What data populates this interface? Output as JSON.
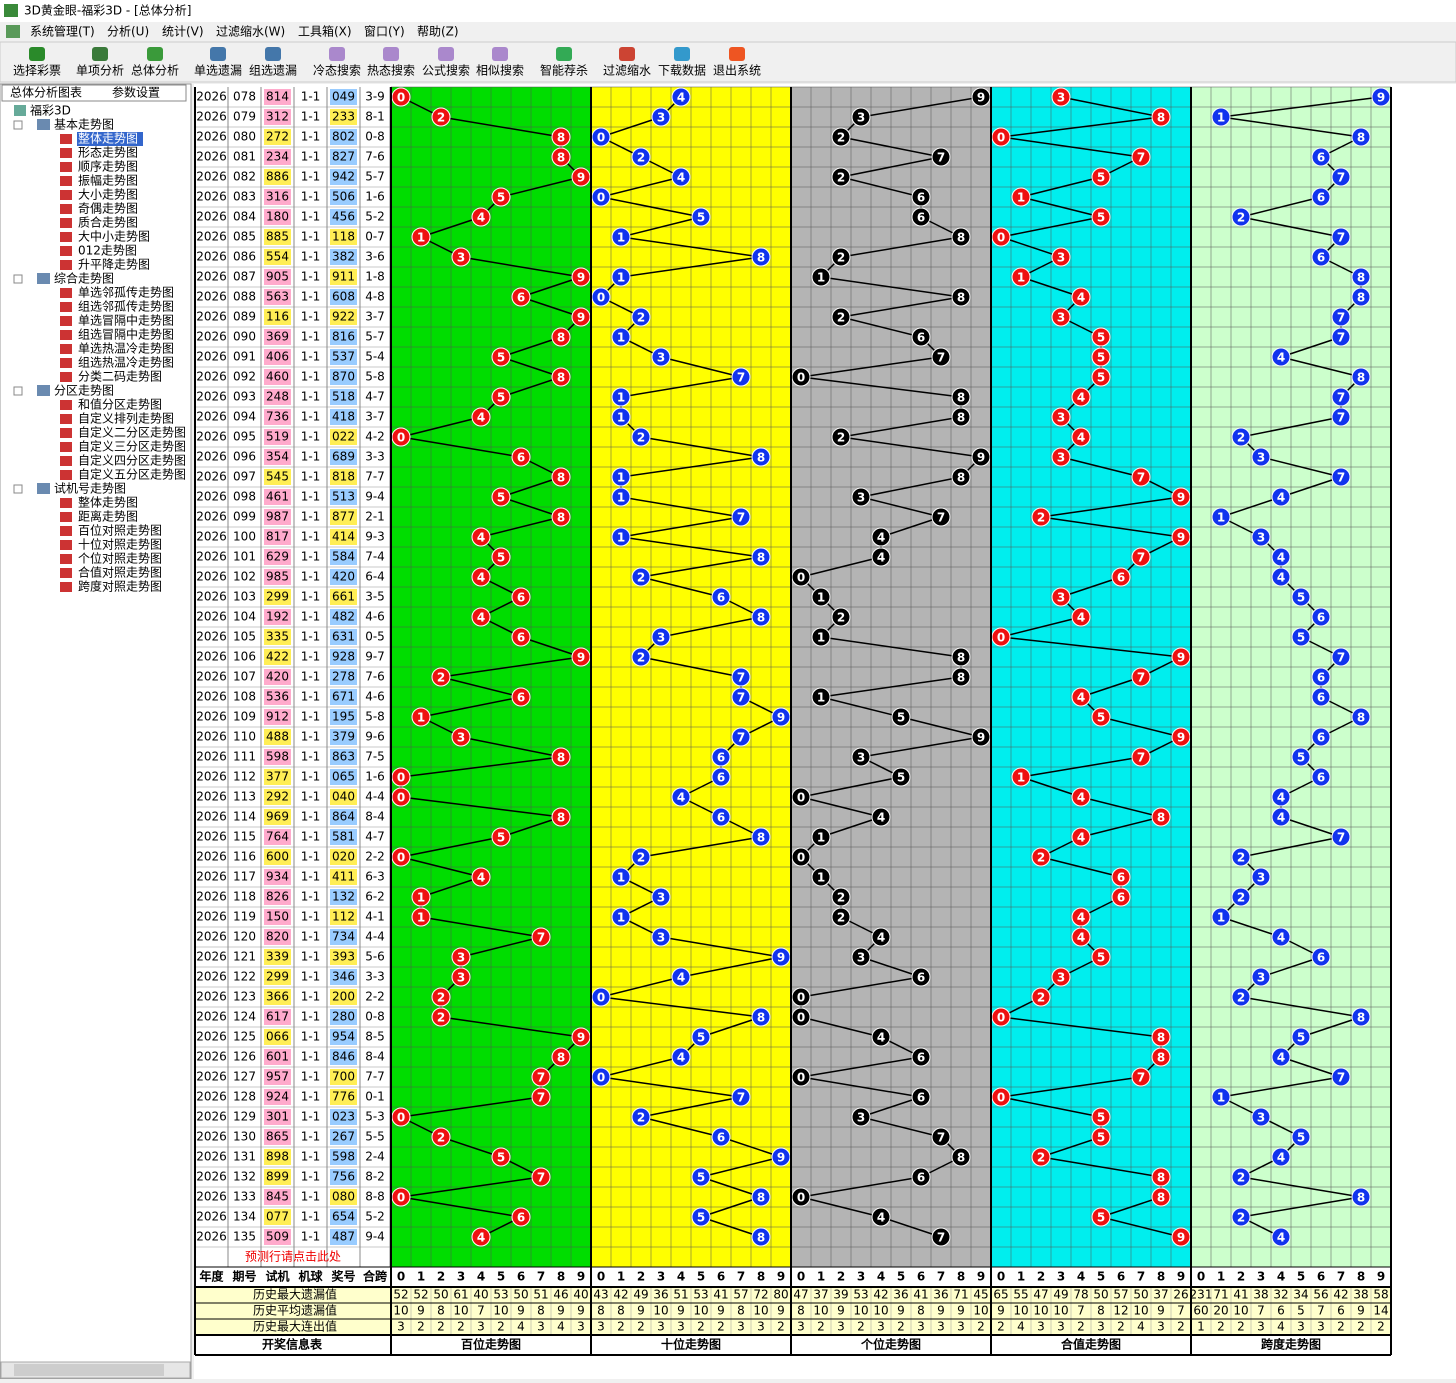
{
  "window": {
    "title": "3D黄金眼-福彩3D - [总体分析]"
  },
  "menu": [
    "系统管理(T)",
    "分析(U)",
    "统计(V)",
    "过滤缩水(W)",
    "工具箱(X)",
    "窗口(Y)",
    "帮助(Z)"
  ],
  "toolbar": [
    "选择彩票",
    "单项分析",
    "总体分析",
    "单选遗漏",
    "组选遗漏",
    "冷态搜索",
    "热态搜索",
    "公式搜索",
    "相似搜索",
    "智能荐杀",
    "过滤缩水",
    "下载数据",
    "退出系统"
  ],
  "sidebar": {
    "dropdown": "总体分析图表",
    "settings": "参数设置",
    "root": "福彩3D",
    "groups": [
      {
        "label": "基本走势图",
        "items": [
          "整体走势图",
          "形态走势图",
          "顺序走势图",
          "振幅走势图",
          "大小走势图",
          "奇偶走势图",
          "质合走势图",
          "大中小走势图",
          "012走势图",
          "升平降走势图"
        ]
      },
      {
        "label": "综合走势图",
        "items": [
          "单选邻孤传走势图",
          "组选邻孤传走势图",
          "单选冒隔中走势图",
          "组选冒隔中走势图",
          "单选热温冷走势图",
          "组选热温冷走势图",
          "分类二码走势图"
        ]
      },
      {
        "label": "分区走势图",
        "items": [
          "和值分区走势图",
          "自定义排列走势图",
          "自定义二分区走势图",
          "自定义三分区走势图",
          "自定义四分区走势图",
          "自定义五分区走势图"
        ]
      },
      {
        "label": "试机号走势图",
        "items": [
          "整体走势图",
          "距离走势图",
          "百位对照走势图",
          "十位对照走势图",
          "个位对照走势图",
          "合值对照走势图",
          "跨度对照走势图"
        ]
      }
    ]
  },
  "table": {
    "columns": [
      "年度",
      "期号",
      "试机",
      "机球",
      "奖号",
      "合跨"
    ],
    "colors": {
      "test": "#ffaacc",
      "draw": "#99ccff",
      "pair": "#ffee55"
    },
    "rows": [
      [
        "2026",
        "078",
        "814",
        "1-1",
        "049",
        "3-9"
      ],
      [
        "2026",
        "079",
        "312",
        "1-1",
        "233",
        "8-1"
      ],
      [
        "2026",
        "080",
        "272",
        "1-1",
        "802",
        "0-8"
      ],
      [
        "2026",
        "081",
        "234",
        "1-1",
        "827",
        "7-6"
      ],
      [
        "2026",
        "082",
        "886",
        "1-1",
        "942",
        "5-7"
      ],
      [
        "2026",
        "083",
        "316",
        "1-1",
        "506",
        "1-6"
      ],
      [
        "2026",
        "084",
        "180",
        "1-1",
        "456",
        "5-2"
      ],
      [
        "2026",
        "085",
        "885",
        "1-1",
        "118",
        "0-7"
      ],
      [
        "2026",
        "086",
        "554",
        "1-1",
        "382",
        "3-6"
      ],
      [
        "2026",
        "087",
        "905",
        "1-1",
        "911",
        "1-8"
      ],
      [
        "2026",
        "088",
        "563",
        "1-1",
        "608",
        "4-8"
      ],
      [
        "2026",
        "089",
        "116",
        "1-1",
        "922",
        "3-7"
      ],
      [
        "2026",
        "090",
        "369",
        "1-1",
        "816",
        "5-7"
      ],
      [
        "2026",
        "091",
        "406",
        "1-1",
        "537",
        "5-4"
      ],
      [
        "2026",
        "092",
        "460",
        "1-1",
        "870",
        "5-8"
      ],
      [
        "2026",
        "093",
        "248",
        "1-1",
        "518",
        "4-7"
      ],
      [
        "2026",
        "094",
        "736",
        "1-1",
        "418",
        "3-7"
      ],
      [
        "2026",
        "095",
        "519",
        "1-1",
        "022",
        "4-2"
      ],
      [
        "2026",
        "096",
        "354",
        "1-1",
        "689",
        "3-3"
      ],
      [
        "2026",
        "097",
        "545",
        "1-1",
        "818",
        "7-7"
      ],
      [
        "2026",
        "098",
        "461",
        "1-1",
        "513",
        "9-4"
      ],
      [
        "2026",
        "099",
        "987",
        "1-1",
        "877",
        "2-1"
      ],
      [
        "2026",
        "100",
        "817",
        "1-1",
        "414",
        "9-3"
      ],
      [
        "2026",
        "101",
        "629",
        "1-1",
        "584",
        "7-4"
      ],
      [
        "2026",
        "102",
        "985",
        "1-1",
        "420",
        "6-4"
      ],
      [
        "2026",
        "103",
        "299",
        "1-1",
        "661",
        "3-5"
      ],
      [
        "2026",
        "104",
        "192",
        "1-1",
        "482",
        "4-6"
      ],
      [
        "2026",
        "105",
        "335",
        "1-1",
        "631",
        "0-5"
      ],
      [
        "2026",
        "106",
        "422",
        "1-1",
        "928",
        "9-7"
      ],
      [
        "2026",
        "107",
        "420",
        "1-1",
        "278",
        "7-6"
      ],
      [
        "2026",
        "108",
        "536",
        "1-1",
        "671",
        "4-6"
      ],
      [
        "2026",
        "109",
        "912",
        "1-1",
        "195",
        "5-8"
      ],
      [
        "2026",
        "110",
        "488",
        "1-1",
        "379",
        "9-6"
      ],
      [
        "2026",
        "111",
        "598",
        "1-1",
        "863",
        "7-5"
      ],
      [
        "2026",
        "112",
        "377",
        "1-1",
        "065",
        "1-6"
      ],
      [
        "2026",
        "113",
        "292",
        "1-1",
        "040",
        "4-4"
      ],
      [
        "2026",
        "114",
        "969",
        "1-1",
        "864",
        "8-4"
      ],
      [
        "2026",
        "115",
        "764",
        "1-1",
        "581",
        "4-7"
      ],
      [
        "2026",
        "116",
        "600",
        "1-1",
        "020",
        "2-2"
      ],
      [
        "2026",
        "117",
        "934",
        "1-1",
        "411",
        "6-3"
      ],
      [
        "2026",
        "118",
        "826",
        "1-1",
        "132",
        "6-2"
      ],
      [
        "2026",
        "119",
        "150",
        "1-1",
        "112",
        "4-1"
      ],
      [
        "2026",
        "120",
        "820",
        "1-1",
        "734",
        "4-4"
      ],
      [
        "2026",
        "121",
        "339",
        "1-1",
        "393",
        "5-6"
      ],
      [
        "2026",
        "122",
        "299",
        "1-1",
        "346",
        "3-3"
      ],
      [
        "2026",
        "123",
        "366",
        "1-1",
        "200",
        "2-2"
      ],
      [
        "2026",
        "124",
        "617",
        "1-1",
        "280",
        "0-8"
      ],
      [
        "2026",
        "125",
        "066",
        "1-1",
        "954",
        "8-5"
      ],
      [
        "2026",
        "126",
        "601",
        "1-1",
        "846",
        "8-4"
      ],
      [
        "2026",
        "127",
        "957",
        "1-1",
        "700",
        "7-7"
      ],
      [
        "2026",
        "128",
        "924",
        "1-1",
        "776",
        "0-1"
      ],
      [
        "2026",
        "129",
        "301",
        "1-1",
        "023",
        "5-3"
      ],
      [
        "2026",
        "130",
        "865",
        "1-1",
        "267",
        "5-5"
      ],
      [
        "2026",
        "131",
        "898",
        "1-1",
        "598",
        "2-4"
      ],
      [
        "2026",
        "132",
        "899",
        "1-1",
        "756",
        "8-2"
      ],
      [
        "2026",
        "133",
        "845",
        "1-1",
        "080",
        "8-8"
      ],
      [
        "2026",
        "134",
        "077",
        "1-1",
        "654",
        "5-2"
      ],
      [
        "2026",
        "135",
        "509",
        "1-1",
        "487",
        "9-4"
      ]
    ],
    "predict_row": "预测行请点击此处",
    "digits": [
      0,
      1,
      2,
      3,
      4,
      5,
      6,
      7,
      8,
      9
    ],
    "stat_labels": [
      "历史最大遗漏值",
      "历史平均遗漏值",
      "历史最大连出值"
    ],
    "info_label": "开奖信息表",
    "sections": [
      {
        "name": "百位走势图",
        "bg": "#00dd00",
        "ball": "#ee1111",
        "stats": [
          [
            52,
            52,
            50,
            61,
            40,
            53,
            50,
            51,
            46,
            40
          ],
          [
            10,
            9,
            8,
            10,
            7,
            10,
            9,
            8,
            9,
            9
          ],
          [
            3,
            2,
            2,
            2,
            3,
            2,
            4,
            3,
            4,
            3
          ]
        ]
      },
      {
        "name": "十位走势图",
        "bg": "#ffff00",
        "ball": "#1133ee",
        "stats": [
          [
            43,
            42,
            49,
            36,
            51,
            53,
            41,
            57,
            72,
            80
          ],
          [
            8,
            8,
            9,
            10,
            9,
            10,
            9,
            8,
            10,
            9
          ],
          [
            3,
            2,
            2,
            3,
            3,
            2,
            2,
            3,
            3,
            2
          ]
        ]
      },
      {
        "name": "个位走势图",
        "bg": "#b4b4b4",
        "ball": "#000000",
        "stats": [
          [
            47,
            37,
            39,
            53,
            42,
            36,
            41,
            36,
            71,
            45
          ],
          [
            8,
            10,
            9,
            10,
            10,
            9,
            8,
            9,
            9,
            10
          ],
          [
            3,
            2,
            3,
            2,
            3,
            2,
            3,
            3,
            3,
            2
          ]
        ]
      },
      {
        "name": "合值走势图",
        "bg": "#00eeee",
        "ball": "#ee1111",
        "stats": [
          [
            65,
            55,
            47,
            49,
            78,
            50,
            57,
            50,
            37,
            26
          ],
          [
            9,
            10,
            10,
            10,
            7,
            8,
            12,
            10,
            9,
            7
          ],
          [
            2,
            4,
            3,
            3,
            2,
            3,
            2,
            4,
            3,
            2
          ]
        ]
      },
      {
        "name": "跨度走势图",
        "bg": "#ccffcc",
        "ball": "#1133ee",
        "stats": [
          [
            231,
            71,
            41,
            38,
            32,
            34,
            56,
            42,
            38,
            58
          ],
          [
            60,
            20,
            10,
            7,
            6,
            5,
            7,
            6,
            9,
            14
          ],
          [
            1,
            2,
            2,
            3,
            4,
            3,
            3,
            2,
            2,
            2
          ]
        ]
      }
    ]
  }
}
